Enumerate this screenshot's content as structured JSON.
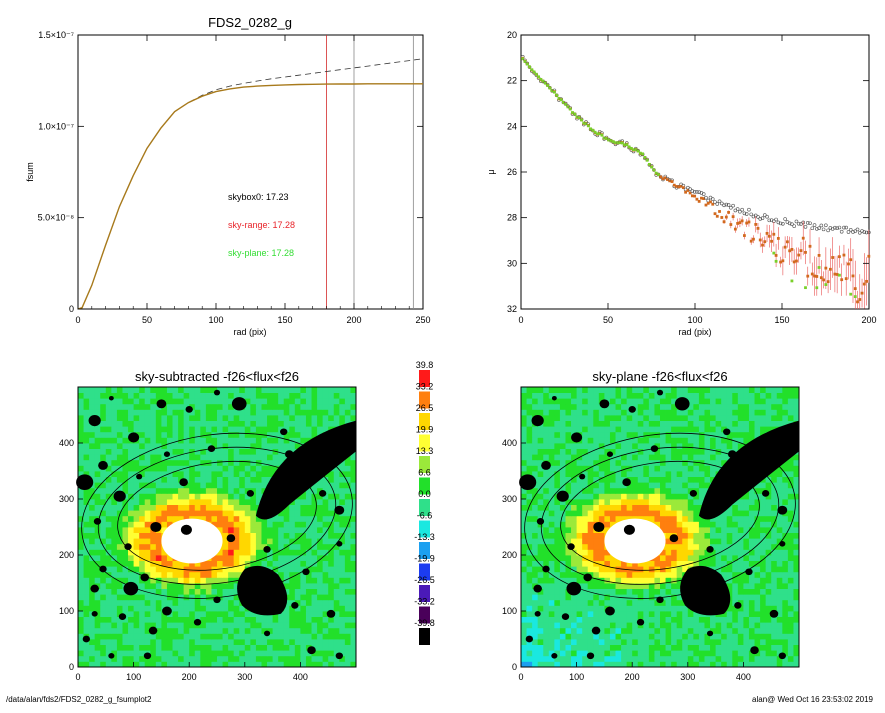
{
  "footer": {
    "path": "/data/alan/fds2/FDS2_0282_g_fsumplot2",
    "user_time": "alan@  Wed Oct 16 23:53:02 2019"
  },
  "chart_data": [
    {
      "id": "curve_of_growth",
      "type": "line",
      "title": "FDS2_0282_g",
      "xlabel": "rad (pix)",
      "ylabel": "fsum",
      "xlim": [
        0,
        250
      ],
      "ylim": [
        0,
        1.5e-07
      ],
      "x_ticks": [
        0,
        50,
        100,
        150,
        200,
        250
      ],
      "y_ticks": [
        {
          "value": 0,
          "label": "0"
        },
        {
          "value": 5e-08,
          "label": "5.0×10⁻⁸"
        },
        {
          "value": 1e-07,
          "label": "1.0×10⁻⁷"
        },
        {
          "value": 1.5e-07,
          "label": "1.5×10⁻⁷"
        }
      ],
      "grid": false,
      "vertical_lines": [
        {
          "x": 180,
          "color": "#d42a2a"
        },
        {
          "x": 200,
          "color": "#888888"
        },
        {
          "x": 243,
          "color": "#888888"
        }
      ],
      "annotations": [
        {
          "text": "skybox0: 17.23",
          "color": "#000000"
        },
        {
          "text": "sky-range: 17.28",
          "color": "#e8242a"
        },
        {
          "text": "sky-plane: 17.28",
          "color": "#33dd33"
        }
      ],
      "series": [
        {
          "style": "dashed",
          "color": "#333333",
          "x": [
            0,
            3,
            10,
            20,
            30,
            40,
            50,
            60,
            70,
            80,
            90,
            100,
            110,
            120,
            130,
            140,
            150,
            160,
            170,
            180,
            190,
            200,
            210,
            220,
            230,
            240,
            250
          ],
          "y": [
            0,
            7e-10,
            1.3e-08,
            3.5e-08,
            5.6e-08,
            7.3e-08,
            8.8e-08,
            9.9e-08,
            1.08e-07,
            1.13e-07,
            1.17e-07,
            1.2e-07,
            1.22e-07,
            1.235e-07,
            1.248e-07,
            1.26e-07,
            1.27e-07,
            1.28e-07,
            1.29e-07,
            1.3e-07,
            1.31e-07,
            1.32e-07,
            1.33e-07,
            1.34e-07,
            1.35e-07,
            1.36e-07,
            1.37e-07
          ]
        },
        {
          "style": "solid",
          "color": "#a87a1c",
          "x": [
            0,
            3,
            10,
            20,
            30,
            40,
            50,
            60,
            70,
            80,
            90,
            100,
            110,
            120,
            130,
            140,
            150,
            160,
            170,
            180,
            190,
            200,
            210,
            220,
            230,
            240,
            250
          ],
          "y": [
            0,
            7e-10,
            1.3e-08,
            3.5e-08,
            5.6e-08,
            7.3e-08,
            8.8e-08,
            9.9e-08,
            1.08e-07,
            1.13e-07,
            1.165e-07,
            1.19e-07,
            1.205e-07,
            1.215e-07,
            1.22e-07,
            1.224e-07,
            1.227e-07,
            1.229e-07,
            1.23e-07,
            1.231e-07,
            1.232e-07,
            1.232e-07,
            1.233e-07,
            1.233e-07,
            1.233e-07,
            1.233e-07,
            1.233e-07
          ]
        }
      ]
    },
    {
      "id": "surface_brightness",
      "type": "scatter",
      "xlabel": "rad (pix)",
      "ylabel": "μ",
      "xlim": [
        0,
        200
      ],
      "ylim": [
        32,
        20
      ],
      "x_ticks": [
        0,
        50,
        100,
        150,
        200
      ],
      "y_ticks": [
        20,
        22,
        24,
        26,
        28,
        30,
        32
      ],
      "grid": false,
      "profile": {
        "x": [
          0,
          5,
          10,
          15,
          20,
          30,
          40,
          50,
          60,
          70,
          75,
          80,
          90,
          100,
          110,
          120,
          130,
          140,
          150,
          160,
          170,
          180,
          190,
          200
        ],
        "y": [
          21.0,
          21.4,
          21.8,
          22.2,
          22.6,
          23.4,
          24.1,
          24.6,
          24.8,
          25.2,
          25.8,
          26.2,
          26.6,
          26.9,
          27.2,
          27.5,
          27.75,
          28.0,
          28.15,
          28.3,
          28.4,
          28.5,
          28.55,
          28.6
        ]
      },
      "series": [
        {
          "name": "skybox0",
          "marker": "circle",
          "color": "#555555"
        },
        {
          "name": "sky-range",
          "marker": "square",
          "color": "#d2691e",
          "errorbar_color": "#e85050"
        },
        {
          "name": "sky-plane",
          "marker": "square",
          "color": "#7ad02a"
        }
      ]
    },
    {
      "id": "residual_map_sky_subtracted",
      "type": "heatmap",
      "title": "sky-subtracted -f26<flux<f26",
      "xlim": [
        0,
        500
      ],
      "ylim": [
        0,
        500
      ],
      "x_ticks": [
        0,
        100,
        200,
        300,
        400
      ],
      "y_ticks": [
        0,
        100,
        200,
        300,
        400
      ],
      "background_level": "sky-subtracted",
      "ellipses": [
        {
          "cx": 250,
          "cy": 270,
          "rx": 245,
          "ry": 145,
          "angle": -8,
          "color": "#000000"
        },
        {
          "cx": 250,
          "cy": 270,
          "rx": 215,
          "ry": 120,
          "angle": -8,
          "color": "#000000"
        },
        {
          "cx": 250,
          "cy": 270,
          "rx": 180,
          "ry": 95,
          "angle": -8,
          "color": "#000000"
        }
      ]
    },
    {
      "id": "residual_map_sky_plane",
      "type": "heatmap",
      "title": "sky-plane -f26<flux<f26",
      "xlim": [
        0,
        500
      ],
      "ylim": [
        0,
        500
      ],
      "x_ticks": [
        0,
        100,
        200,
        300,
        400
      ],
      "y_ticks": [
        0,
        100,
        200,
        300,
        400
      ],
      "background_level": "sky-plane",
      "ellipses": [
        {
          "cx": 250,
          "cy": 270,
          "rx": 245,
          "ry": 145,
          "angle": -8,
          "color": "#000000"
        },
        {
          "cx": 250,
          "cy": 270,
          "rx": 215,
          "ry": 120,
          "angle": -8,
          "color": "#000000"
        },
        {
          "cx": 250,
          "cy": 270,
          "rx": 180,
          "ry": 95,
          "angle": -8,
          "color": "#000000"
        }
      ]
    }
  ],
  "colorbar": {
    "levels": [
      {
        "label": "39.8",
        "color": "#ff1a1a"
      },
      {
        "label": "33.2",
        "color": "#ff7f0e"
      },
      {
        "label": "26.5",
        "color": "#ffd700"
      },
      {
        "label": "19.9",
        "color": "#ffff33"
      },
      {
        "label": "13.3",
        "color": "#9be93a"
      },
      {
        "label": "6.6",
        "color": "#22e02a"
      },
      {
        "label": "0.0",
        "color": "#2fe08a"
      },
      {
        "label": "-6.6",
        "color": "#1ae8e0"
      },
      {
        "label": "-13.3",
        "color": "#1ca0f0"
      },
      {
        "label": "-19.9",
        "color": "#1c3cf0"
      },
      {
        "label": "-26.5",
        "color": "#4a1ab8"
      },
      {
        "label": "-33.2",
        "color": "#4a005a"
      },
      {
        "label": "-39.8",
        "color": "#000000"
      }
    ]
  }
}
